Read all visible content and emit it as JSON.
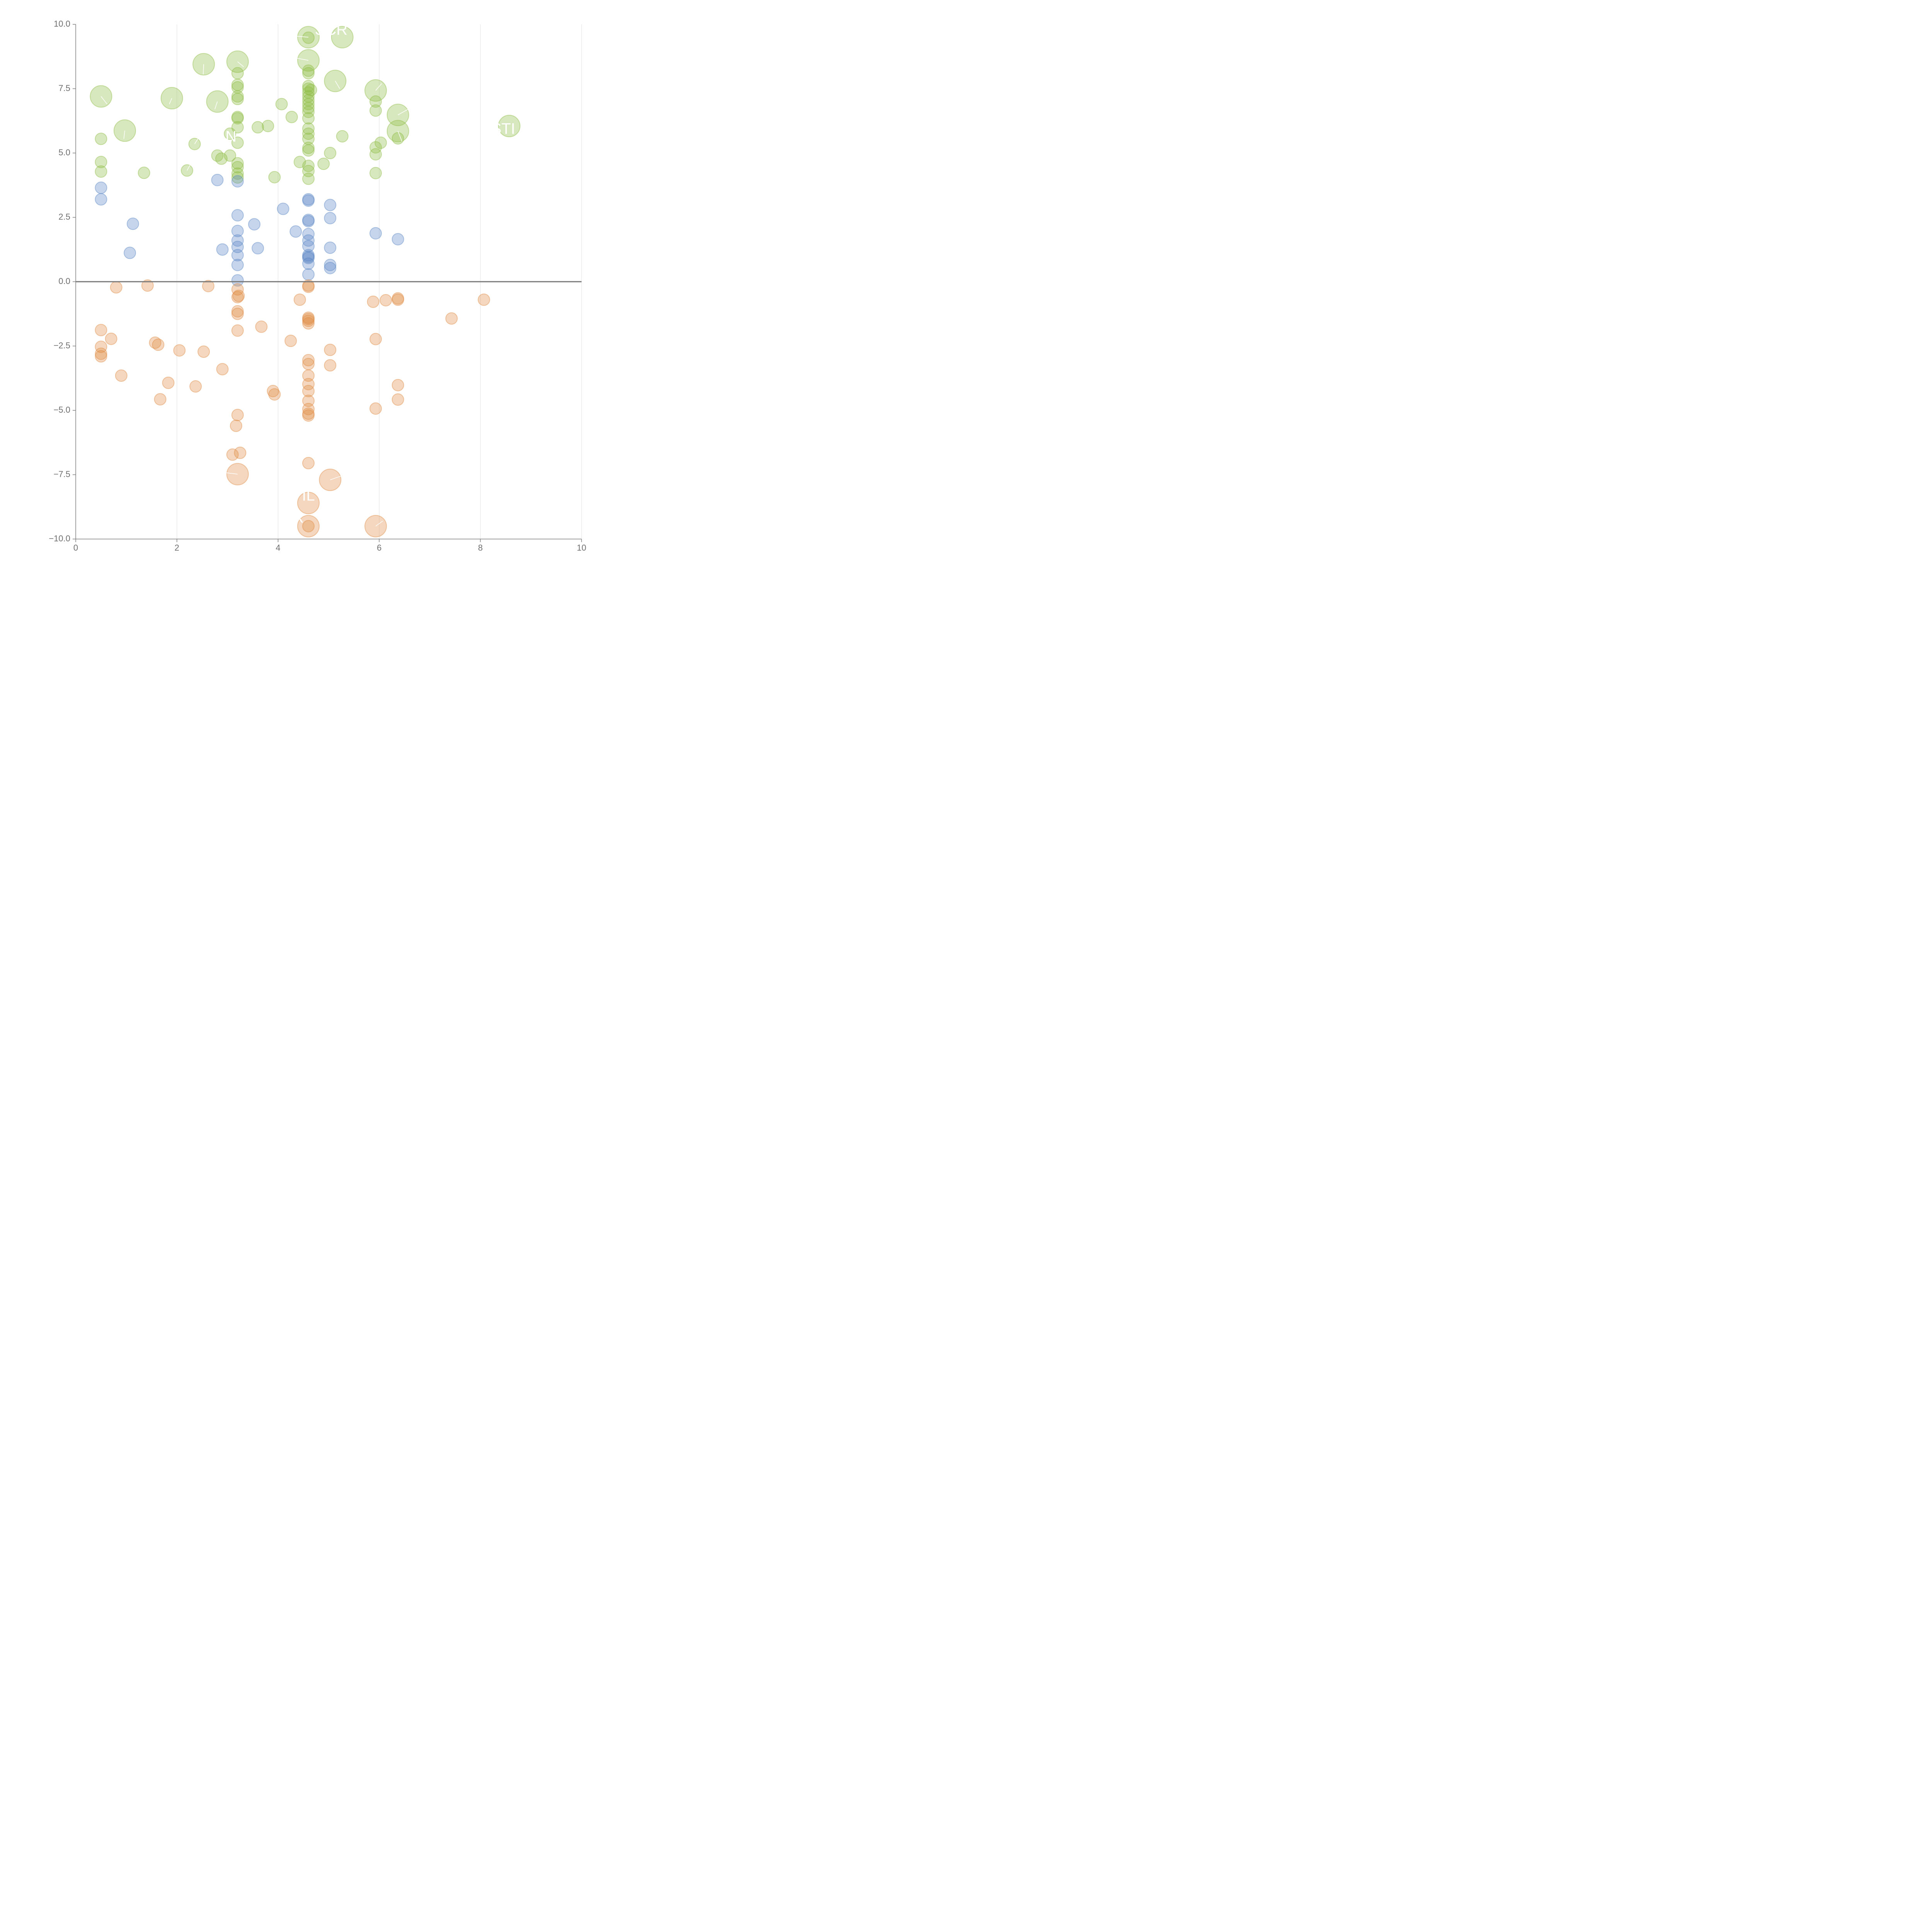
{
  "chart_data": {
    "type": "scatter",
    "title": "",
    "xlabel": "",
    "ylabel": "",
    "xlim": [
      0,
      10
    ],
    "ylim": [
      -10,
      10
    ],
    "x_ticks": [
      "0",
      "2",
      "4",
      "6",
      "8",
      "10"
    ],
    "y_ticks": [
      "10.0",
      "7.5",
      "5.0",
      "2.5",
      "0.0",
      "−2.5",
      "−5.0",
      "−7.5",
      "−10.0"
    ],
    "grid": "vertical",
    "zero_line": true,
    "colors": {
      "green": "#8fbc45",
      "blue": "#5b87c5",
      "orange": "#e08c45",
      "axis": "#808080",
      "grid": "#e0e0e0"
    },
    "series": [
      {
        "color": "green",
        "points": [
          [
            4.6,
            9.5,
            1
          ],
          [
            5.27,
            9.5,
            1
          ],
          [
            4.6,
            8.6,
            1
          ],
          [
            2.53,
            8.45,
            1
          ],
          [
            3.2,
            8.55,
            1
          ],
          [
            5.13,
            7.8,
            1
          ],
          [
            0.5,
            7.2,
            1
          ],
          [
            1.9,
            7.13,
            1
          ],
          [
            2.8,
            7.0,
            1
          ],
          [
            5.93,
            7.43,
            1
          ],
          [
            6.37,
            6.48,
            1
          ],
          [
            6.37,
            5.85,
            1
          ],
          [
            0.97,
            5.87,
            1
          ],
          [
            8.57,
            6.05,
            1
          ],
          [
            4.6,
            9.48,
            0
          ],
          [
            4.6,
            8.2,
            0
          ],
          [
            4.6,
            8.1,
            0
          ],
          [
            4.6,
            7.6,
            0
          ],
          [
            4.6,
            7.5,
            0
          ],
          [
            4.6,
            7.35,
            0
          ],
          [
            4.6,
            7.2,
            0
          ],
          [
            4.6,
            7.05,
            0
          ],
          [
            4.6,
            6.9,
            0
          ],
          [
            4.6,
            6.75,
            0
          ],
          [
            4.6,
            6.6,
            0
          ],
          [
            4.6,
            6.35,
            0
          ],
          [
            4.6,
            5.95,
            0
          ],
          [
            4.6,
            5.75,
            0
          ],
          [
            4.6,
            5.55,
            0
          ],
          [
            4.6,
            5.2,
            0
          ],
          [
            4.6,
            5.1,
            0
          ],
          [
            4.6,
            4.5,
            0
          ],
          [
            4.6,
            4.3,
            0
          ],
          [
            4.6,
            4.0,
            0
          ],
          [
            4.65,
            7.45,
            0
          ],
          [
            3.2,
            8.1,
            0
          ],
          [
            3.2,
            7.65,
            0
          ],
          [
            3.2,
            7.55,
            0
          ],
          [
            3.2,
            7.2,
            0
          ],
          [
            3.2,
            7.1,
            0
          ],
          [
            3.2,
            6.4,
            0
          ],
          [
            3.2,
            6.35,
            0
          ],
          [
            3.2,
            6.0,
            0
          ],
          [
            3.2,
            5.4,
            0
          ],
          [
            3.2,
            4.6,
            0
          ],
          [
            3.2,
            4.45,
            0
          ],
          [
            3.2,
            4.2,
            0
          ],
          [
            3.2,
            4.05,
            0
          ],
          [
            3.05,
            5.75,
            0
          ],
          [
            3.05,
            4.9,
            0
          ],
          [
            2.8,
            4.9,
            0
          ],
          [
            2.88,
            4.78,
            0
          ],
          [
            0.5,
            5.55,
            0
          ],
          [
            0.5,
            4.65,
            0
          ],
          [
            0.5,
            4.28,
            0
          ],
          [
            1.35,
            4.23,
            0
          ],
          [
            2.35,
            5.35,
            0
          ],
          [
            2.2,
            4.32,
            0
          ],
          [
            3.6,
            6.0,
            0
          ],
          [
            3.8,
            6.05,
            0
          ],
          [
            4.07,
            6.9,
            0
          ],
          [
            4.27,
            6.4,
            0
          ],
          [
            4.43,
            4.65,
            0
          ],
          [
            3.93,
            4.06,
            0
          ],
          [
            4.9,
            4.58,
            0
          ],
          [
            5.03,
            5.0,
            0
          ],
          [
            5.27,
            5.65,
            0
          ],
          [
            5.93,
            7.0,
            0
          ],
          [
            5.93,
            6.65,
            0
          ],
          [
            5.93,
            5.22,
            0
          ],
          [
            5.93,
            4.95,
            0
          ],
          [
            5.93,
            4.22,
            0
          ],
          [
            6.03,
            5.4,
            0
          ],
          [
            6.37,
            5.57,
            0
          ]
        ]
      },
      {
        "color": "blue",
        "points": [
          [
            0.5,
            3.65,
            0
          ],
          [
            0.5,
            3.2,
            0
          ],
          [
            1.13,
            2.25,
            0
          ],
          [
            1.07,
            1.12,
            0
          ],
          [
            2.8,
            3.95,
            0
          ],
          [
            2.9,
            1.25,
            0
          ],
          [
            3.2,
            3.9,
            0
          ],
          [
            3.2,
            2.58,
            0
          ],
          [
            3.2,
            1.97,
            0
          ],
          [
            3.2,
            1.6,
            0
          ],
          [
            3.2,
            1.35,
            0
          ],
          [
            3.2,
            1.03,
            0
          ],
          [
            3.2,
            0.65,
            0
          ],
          [
            3.2,
            0.05,
            0
          ],
          [
            3.53,
            2.23,
            0
          ],
          [
            3.6,
            1.3,
            0
          ],
          [
            4.1,
            2.83,
            0
          ],
          [
            4.35,
            1.95,
            0
          ],
          [
            4.6,
            3.2,
            0
          ],
          [
            4.6,
            3.15,
            0
          ],
          [
            4.6,
            2.4,
            0
          ],
          [
            4.6,
            2.35,
            0
          ],
          [
            4.6,
            1.85,
            0
          ],
          [
            4.6,
            1.6,
            0
          ],
          [
            4.6,
            1.38,
            0
          ],
          [
            4.6,
            1.03,
            0
          ],
          [
            4.6,
            0.97,
            0
          ],
          [
            4.6,
            0.92,
            0
          ],
          [
            4.6,
            0.7,
            0
          ],
          [
            4.6,
            0.28,
            0
          ],
          [
            5.03,
            2.98,
            0
          ],
          [
            5.03,
            2.47,
            0
          ],
          [
            5.03,
            1.32,
            0
          ],
          [
            5.03,
            0.65,
            0
          ],
          [
            5.03,
            0.53,
            0
          ],
          [
            5.93,
            1.88,
            0
          ],
          [
            6.37,
            1.65,
            0
          ]
        ]
      },
      {
        "color": "orange",
        "points": [
          [
            0.8,
            -0.22,
            0
          ],
          [
            1.42,
            -0.15,
            0
          ],
          [
            2.62,
            -0.17,
            0
          ],
          [
            3.2,
            -0.3,
            0
          ],
          [
            3.22,
            -0.55,
            0
          ],
          [
            3.2,
            -0.6,
            0
          ],
          [
            3.2,
            -1.15,
            0
          ],
          [
            3.2,
            -1.25,
            0
          ],
          [
            3.2,
            -1.9,
            0
          ],
          [
            4.43,
            -0.7,
            0
          ],
          [
            4.6,
            -0.15,
            0
          ],
          [
            4.6,
            -0.2,
            0
          ],
          [
            4.6,
            -1.4,
            0
          ],
          [
            4.6,
            -1.45,
            0
          ],
          [
            4.6,
            -1.52,
            0
          ],
          [
            4.6,
            -1.62,
            0
          ],
          [
            5.88,
            -0.78,
            0
          ],
          [
            6.13,
            -0.72,
            0
          ],
          [
            6.37,
            -0.65,
            0
          ],
          [
            6.37,
            -0.7,
            0
          ],
          [
            7.43,
            -1.43,
            0
          ],
          [
            8.07,
            -0.7,
            0
          ],
          [
            0.5,
            -1.88,
            0
          ],
          [
            0.5,
            -2.53,
            0
          ],
          [
            0.5,
            -2.8,
            0
          ],
          [
            0.5,
            -2.9,
            0
          ],
          [
            0.7,
            -2.22,
            0
          ],
          [
            0.9,
            -3.65,
            0
          ],
          [
            1.57,
            -2.37,
            0
          ],
          [
            1.63,
            -2.45,
            0
          ],
          [
            2.05,
            -2.67,
            0
          ],
          [
            2.53,
            -2.72,
            0
          ],
          [
            2.9,
            -3.4,
            0
          ],
          [
            1.83,
            -3.93,
            0
          ],
          [
            2.37,
            -4.07,
            0
          ],
          [
            1.67,
            -4.57,
            0
          ],
          [
            3.67,
            -1.75,
            0
          ],
          [
            4.25,
            -2.3,
            0
          ],
          [
            3.9,
            -4.25,
            0
          ],
          [
            3.93,
            -4.38,
            0
          ],
          [
            4.6,
            -3.05,
            0
          ],
          [
            4.6,
            -3.2,
            0
          ],
          [
            4.6,
            -3.65,
            0
          ],
          [
            4.6,
            -3.98,
            0
          ],
          [
            4.6,
            -4.25,
            0
          ],
          [
            4.6,
            -4.63,
            0
          ],
          [
            4.6,
            -4.95,
            0
          ],
          [
            4.6,
            -5.13,
            0
          ],
          [
            4.6,
            -5.2,
            0
          ],
          [
            4.6,
            -7.05,
            0
          ],
          [
            5.03,
            -2.65,
            0
          ],
          [
            5.03,
            -3.25,
            0
          ],
          [
            5.93,
            -2.23,
            0
          ],
          [
            5.93,
            -4.93,
            0
          ],
          [
            6.37,
            -4.02,
            0
          ],
          [
            6.37,
            -4.58,
            0
          ],
          [
            3.2,
            -5.18,
            0
          ],
          [
            3.17,
            -5.6,
            0
          ],
          [
            3.1,
            -6.72,
            0
          ],
          [
            3.25,
            -6.65,
            0
          ],
          [
            4.6,
            -9.5,
            0
          ],
          [
            3.2,
            -7.48,
            1
          ],
          [
            5.03,
            -7.7,
            1
          ],
          [
            4.6,
            -8.6,
            1
          ],
          [
            4.6,
            -9.5,
            1
          ],
          [
            5.93,
            -9.5,
            1
          ]
        ]
      }
    ],
    "labels": [
      {
        "text": "SCR",
        "x": 5.05,
        "y": 9.75
      },
      {
        "text": "N",
        "x": 3.07,
        "y": 5.6
      },
      {
        "text": "STI",
        "x": 8.45,
        "y": 5.9
      },
      {
        "text": "IL",
        "x": 4.6,
        "y": -8.35
      },
      {
        "text": "R",
        "x": 4.4,
        "y": -9.2
      }
    ],
    "leader_lines": [
      [
        4.6,
        9.5,
        4.3,
        9.55
      ],
      [
        4.6,
        8.6,
        4.28,
        8.72
      ],
      [
        2.53,
        8.45,
        2.52,
        8.05
      ],
      [
        3.2,
        8.55,
        3.32,
        8.35
      ],
      [
        5.13,
        7.8,
        5.22,
        7.5
      ],
      [
        0.5,
        7.2,
        0.62,
        6.9
      ],
      [
        1.9,
        7.13,
        1.85,
        6.9
      ],
      [
        2.8,
        7.0,
        2.75,
        6.7
      ],
      [
        5.93,
        7.43,
        6.05,
        7.7
      ],
      [
        6.37,
        6.48,
        6.57,
        6.7
      ],
      [
        6.37,
        5.85,
        6.45,
        5.45
      ],
      [
        0.97,
        5.87,
        0.95,
        5.55
      ],
      [
        2.35,
        5.35,
        2.43,
        5.6
      ],
      [
        2.2,
        4.32,
        2.28,
        4.6
      ],
      [
        3.2,
        -7.48,
        2.95,
        -7.42
      ],
      [
        5.03,
        -7.7,
        5.25,
        -7.55
      ],
      [
        5.93,
        -9.5,
        6.07,
        -9.3
      ]
    ]
  }
}
